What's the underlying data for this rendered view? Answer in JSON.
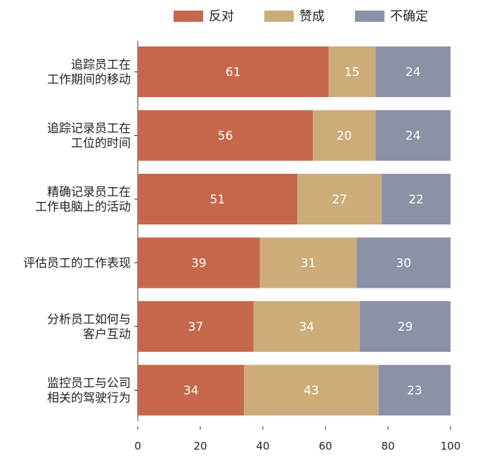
{
  "chart_data": {
    "type": "bar",
    "orientation": "horizontal",
    "stacked": true,
    "categories": [
      [
        "追踪员工在",
        "工作期间的移动"
      ],
      [
        "追踪记录员工在",
        "工位的时间"
      ],
      [
        "精确记录员工在",
        "工作电脑上的活动"
      ],
      [
        "评估员工的工作表现"
      ],
      [
        "分析员工如何与",
        "客户互动"
      ],
      [
        "监控员工与公司",
        "相关的驾驶行为"
      ]
    ],
    "series": [
      {
        "name": "反对",
        "color": "#c5674a",
        "values": [
          61,
          56,
          51,
          39,
          37,
          34
        ]
      },
      {
        "name": "赞成",
        "color": "#cdac7a",
        "values": [
          15,
          20,
          27,
          31,
          34,
          43
        ]
      },
      {
        "name": "不确定",
        "color": "#8b91a7",
        "values": [
          24,
          24,
          22,
          30,
          29,
          23
        ]
      }
    ],
    "xlim": [
      0,
      100
    ],
    "xticks": [
      0,
      20,
      40,
      60,
      80,
      100
    ],
    "legend_position": "top",
    "grid": false,
    "title": "",
    "xlabel": "",
    "ylabel": ""
  }
}
